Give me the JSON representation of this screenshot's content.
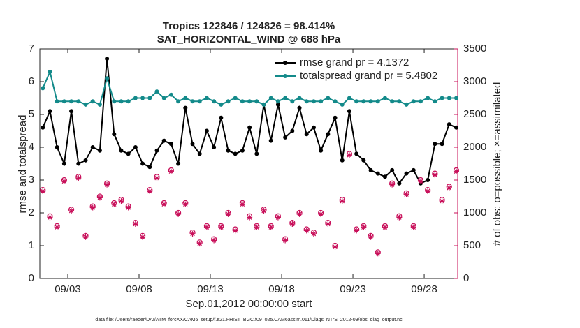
{
  "chart_data": {
    "type": "line",
    "title": "Tropics 122846 / 124826 = 98.414%",
    "subtitle": "SAT_HORIZONTAL_WIND @ 688 hPa",
    "xlabel": "Sep.01,2012 00:00:00 start",
    "ylabel": "rmse and totalspread",
    "y2label": "# of obs: o=possible; ×=assimilated",
    "footnote": "data file: /Users/raeder/DAI/ATM_forcXX/CAM6_setup/f.e21.FHIST_BGC.f09_025.CAM6assim.011/Diags_NTrS_2012-09/obs_diag_output.nc",
    "legend": "upper right",
    "y2color": "#c8105a",
    "xlim": [
      0.04,
      29.35
    ],
    "xticks": [
      {
        "value": 2,
        "label": "09/03"
      },
      {
        "value": 7,
        "label": "09/08"
      },
      {
        "value": 12,
        "label": "09/13"
      },
      {
        "value": 17,
        "label": "09/18"
      },
      {
        "value": 22,
        "label": "09/23"
      },
      {
        "value": 27,
        "label": "09/28"
      }
    ],
    "ylim": [
      0,
      7
    ],
    "yticks": [
      0,
      1,
      2,
      3,
      4,
      5,
      6,
      7
    ],
    "y2lim": [
      0,
      3500
    ],
    "y2ticks": [
      0,
      500,
      1000,
      1500,
      2000,
      2500,
      3000,
      3500
    ],
    "x": [
      0.25,
      0.75,
      1.25,
      1.75,
      2.25,
      2.75,
      3.25,
      3.75,
      4.25,
      4.75,
      5.25,
      5.75,
      6.25,
      6.75,
      7.25,
      7.75,
      8.25,
      8.75,
      9.25,
      9.75,
      10.25,
      10.75,
      11.25,
      11.75,
      12.25,
      12.75,
      13.25,
      13.75,
      14.25,
      14.75,
      15.25,
      15.75,
      16.25,
      16.75,
      17.25,
      17.75,
      18.25,
      18.75,
      19.25,
      19.75,
      20.25,
      20.75,
      21.25,
      21.75,
      22.25,
      22.75,
      23.25,
      23.75,
      24.25,
      24.75,
      25.25,
      25.75,
      26.25,
      26.75,
      27.25,
      27.75,
      28.25,
      28.75,
      29.25
    ],
    "series": [
      {
        "name": "rmse grand pr = 4.1372",
        "color": "#000000",
        "type": "line",
        "values": [
          4.6,
          5.1,
          4.0,
          3.5,
          5.1,
          3.5,
          3.6,
          4.0,
          3.9,
          6.7,
          4.4,
          3.9,
          3.8,
          4.0,
          3.5,
          3.4,
          3.9,
          4.2,
          4.1,
          3.5,
          5.2,
          4.1,
          3.8,
          4.5,
          4.0,
          4.9,
          3.9,
          3.8,
          3.9,
          4.6,
          3.8,
          5.3,
          4.2,
          5.3,
          4.3,
          4.5,
          5.2,
          4.4,
          4.6,
          3.9,
          4.4,
          4.9,
          3.6,
          5.1,
          3.8,
          3.6,
          3.3,
          3.2,
          3.1,
          3.3,
          2.9,
          3.2,
          3.3,
          2.9,
          3.0,
          4.1,
          4.1,
          4.7,
          4.6
        ]
      },
      {
        "name": "totalspread grand pr = 5.4802",
        "color": "#138a8a",
        "type": "line",
        "values": [
          5.8,
          6.3,
          5.4,
          5.4,
          5.4,
          5.4,
          5.3,
          5.4,
          5.3,
          6.1,
          5.4,
          5.4,
          5.4,
          5.5,
          5.5,
          5.5,
          5.7,
          5.5,
          5.6,
          5.4,
          5.5,
          5.4,
          5.4,
          5.5,
          5.4,
          5.3,
          5.4,
          5.5,
          5.4,
          5.4,
          5.4,
          5.3,
          5.5,
          5.4,
          5.5,
          5.4,
          5.5,
          5.4,
          5.4,
          5.4,
          5.5,
          5.4,
          5.3,
          5.5,
          5.4,
          5.4,
          5.4,
          5.4,
          5.5,
          5.4,
          5.4,
          5.3,
          5.4,
          5.4,
          5.5,
          5.4,
          5.5,
          5.5,
          5.5
        ]
      },
      {
        "color": "#c8105a",
        "type": "scatter",
        "marker": "circle",
        "axis": "y2",
        "values": [
          1350,
          950,
          800,
          1500,
          1050,
          1550,
          650,
          1100,
          1250,
          1450,
          1150,
          1200,
          1100,
          850,
          650,
          1350,
          1550,
          1150,
          1650,
          1000,
          1150,
          700,
          550,
          800,
          600,
          800,
          1000,
          750,
          1150,
          950,
          800,
          1050,
          800,
          950,
          600,
          850,
          1000,
          750,
          700,
          1000,
          850,
          500,
          1200,
          1900,
          750,
          800,
          650,
          400,
          800,
          1450,
          950,
          1300,
          800,
          1500,
          1350,
          1600,
          1200,
          1400,
          1650
        ]
      },
      {
        "color": "#c8105a",
        "type": "scatter",
        "marker": "asterisk",
        "axis": "y2",
        "values": [
          1330,
          930,
          780,
          1480,
          1030,
          1530,
          630,
          1080,
          1230,
          1430,
          1130,
          1180,
          1080,
          830,
          630,
          1330,
          1530,
          1130,
          1630,
          980,
          1130,
          680,
          530,
          780,
          580,
          780,
          980,
          730,
          1130,
          930,
          780,
          1030,
          780,
          930,
          580,
          830,
          980,
          730,
          680,
          980,
          830,
          480,
          1180,
          1880,
          730,
          780,
          630,
          380,
          780,
          1430,
          930,
          1280,
          780,
          1480,
          1330,
          1580,
          1180,
          1380,
          1630
        ]
      }
    ]
  }
}
